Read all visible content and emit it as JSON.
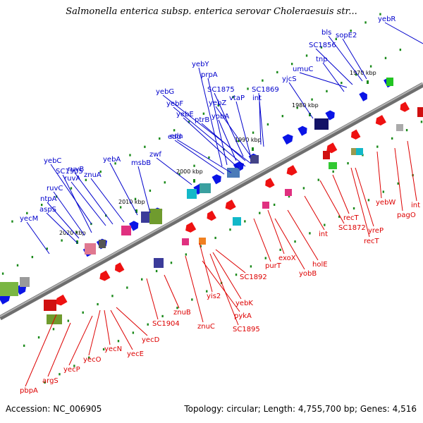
{
  "title": "Salmonella enterica subsp. enterica serovar Choleraesuis str...",
  "footer": {
    "accession": "Accession: NC_006905",
    "summary": "Topology: circular; Length: 4,755,700 bp; Genes: 4,516"
  },
  "colors": {
    "forward_label": "#0000cc",
    "reverse_label": "#dd0000",
    "forward_arrow": "#0a14e6",
    "reverse_arrow": "#ee1111",
    "backbone": "#8a8a8a"
  },
  "ticks": [
    "2020 kbp",
    "2010 kbp",
    "2000 kbp",
    "1990 kbp",
    "1980 kbp",
    "1970 kbp"
  ],
  "forward_genes": [
    "yecM",
    "aspS",
    "ntpA",
    "ruvC",
    "SC1905",
    "yebC",
    "ruvA",
    "ruvB",
    "znuA",
    "yebA",
    "msbB",
    "zwf",
    "edd",
    "eda",
    "yebE",
    "yebF",
    "yebG",
    "ptrB",
    "yebZ",
    "yebY",
    "prpA",
    "SC1875",
    "vtaP",
    "yobA",
    "SC1869",
    "int",
    "yjcS",
    "umuC",
    "tnp",
    "SC1856",
    "bls",
    "sopE2",
    "yebR"
  ],
  "reverse_genes": [
    "pbpA",
    "argS",
    "yecP",
    "yecO",
    "yecN",
    "yecE",
    "yecD",
    "SC1904",
    "znuB",
    "znuC",
    "yis2",
    "SC1895",
    "pykA",
    "yebK",
    "SC1892",
    "purT",
    "exoX",
    "yobB",
    "holE",
    "int",
    "SC1872",
    "recT",
    "yreP",
    "recT",
    "yebW",
    "pagO",
    "int"
  ]
}
